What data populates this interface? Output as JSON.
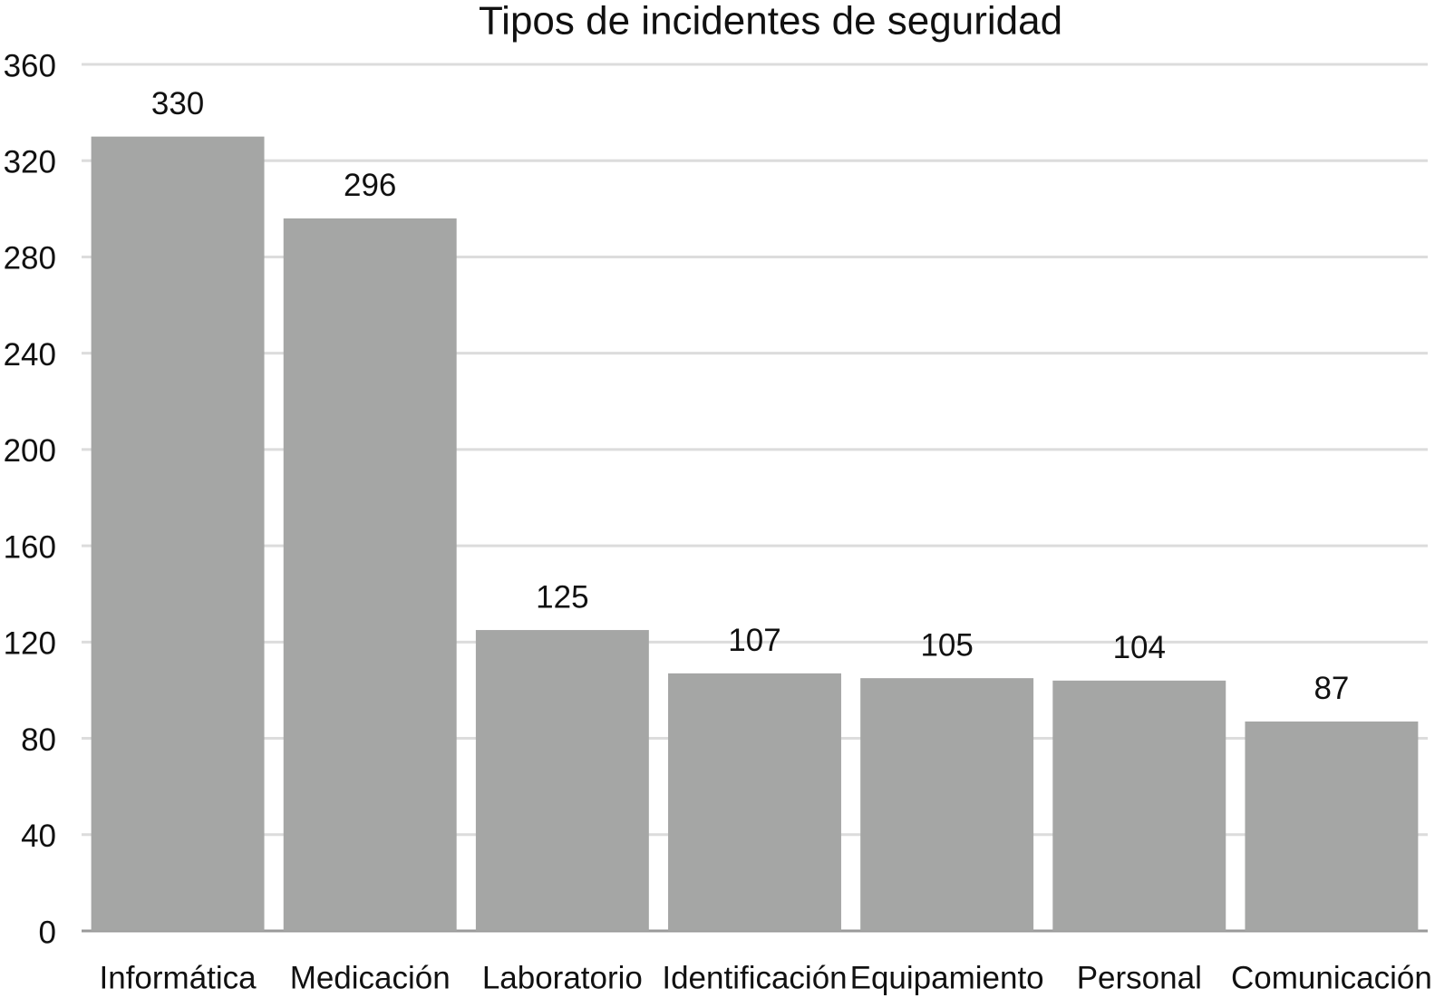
{
  "chart_data": {
    "type": "bar",
    "title": "Tipos de incidentes de seguridad",
    "categories": [
      "Informática",
      "Medicación",
      "Laboratorio",
      "Identificación",
      "Equipamiento",
      "Personal",
      "Comunicación"
    ],
    "values": [
      330,
      296,
      125,
      107,
      105,
      104,
      87
    ],
    "color": "#a5a6a5",
    "ylim": [
      0,
      360
    ],
    "yticks": [
      0,
      40,
      80,
      120,
      160,
      200,
      240,
      280,
      320,
      360
    ],
    "grid": true
  }
}
